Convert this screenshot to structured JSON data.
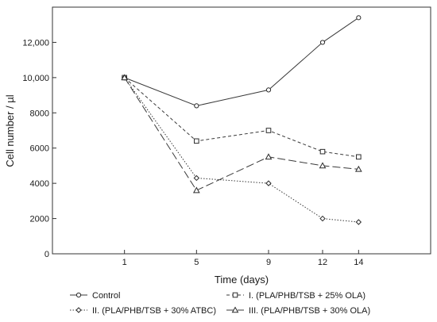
{
  "chart_data": {
    "type": "line",
    "title": "",
    "xlabel": "Time (days)",
    "ylabel": "Cell number / µl",
    "categories": [
      "1",
      "5",
      "9",
      "12",
      "14"
    ],
    "x_values": [
      1,
      5,
      9,
      12,
      14
    ],
    "xlim": [
      -3,
      18
    ],
    "ylim": [
      0,
      14000
    ],
    "y_ticks": [
      0,
      2000,
      4000,
      6000,
      8000,
      10000,
      12000
    ],
    "y_tick_labels": [
      "0",
      "2000",
      "4000",
      "6000",
      "8000",
      "10,000",
      "12,000"
    ],
    "grid": false,
    "legend_position": "bottom",
    "series": [
      {
        "name": "Control",
        "values": [
          10000,
          8400,
          9300,
          12000,
          13400
        ],
        "line_style": "solid",
        "marker": "circle",
        "color": "#3a3a3a"
      },
      {
        "name": "I. (PLA/PHB/TSB + 25% OLA)",
        "values": [
          10000,
          6400,
          7000,
          5800,
          5500
        ],
        "line_style": "dashed",
        "marker": "square",
        "color": "#3a3a3a"
      },
      {
        "name": "II. (PLA/PHB/TSB + 30% ATBC)",
        "values": [
          10000,
          4300,
          4000,
          2000,
          1800
        ],
        "line_style": "dotted",
        "marker": "diamond",
        "color": "#3a3a3a"
      },
      {
        "name": "III. (PLA/PHB/TSB + 30% OLA)",
        "values": [
          10000,
          3600,
          5500,
          5000,
          4800
        ],
        "line_style": "long-dash",
        "marker": "triangle",
        "color": "#3a3a3a"
      }
    ]
  }
}
